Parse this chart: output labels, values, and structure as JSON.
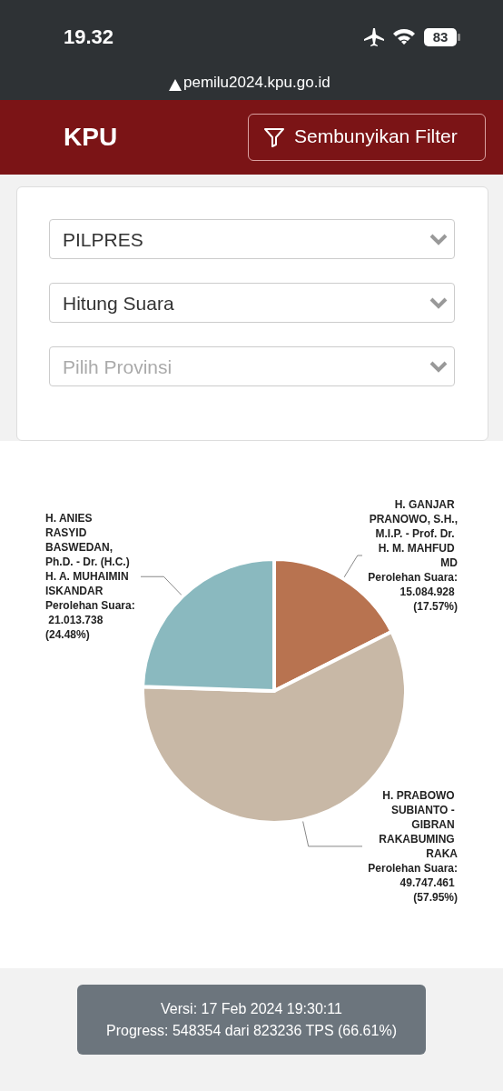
{
  "chart_data": {
    "type": "pie",
    "categories": [
      "H. GANJAR PRANOWO, S.H., M.I.P. - Prof. Dr. H. M. MAHFUD MD",
      "H. PRABOWO SUBIANTO - GIBRAN RAKABUMING RAKA",
      "H. ANIES RASYID BASWEDAN, Ph.D. - Dr. (H.C.) H. A. MUHAIMIN ISKANDAR"
    ],
    "values": [
      15084928,
      49747461,
      21013738
    ],
    "colors": [
      "#b87350",
      "#c8b8a6",
      "#8ab9bf"
    ],
    "value_labels": [
      "Perolehan Suara: 15.084.928 (17.57%)",
      "Perolehan Suara: 49.747.461 (57.95%)",
      "Perolehan Suara: 21.013.738 (24.48%)"
    ],
    "legend": false,
    "annotations": [
      "19.32",
      "83",
      "pemilu2024.kpu.go.id",
      "KPU",
      "Sembunyikan Filter",
      "PILPRES",
      "Hitung Suara",
      "Pilih Provinsi",
      "Versi: 17 Feb 2024 19:30:11",
      "Progress: 548354 dari 823236 TPS (66.61%)"
    ]
  }
}
